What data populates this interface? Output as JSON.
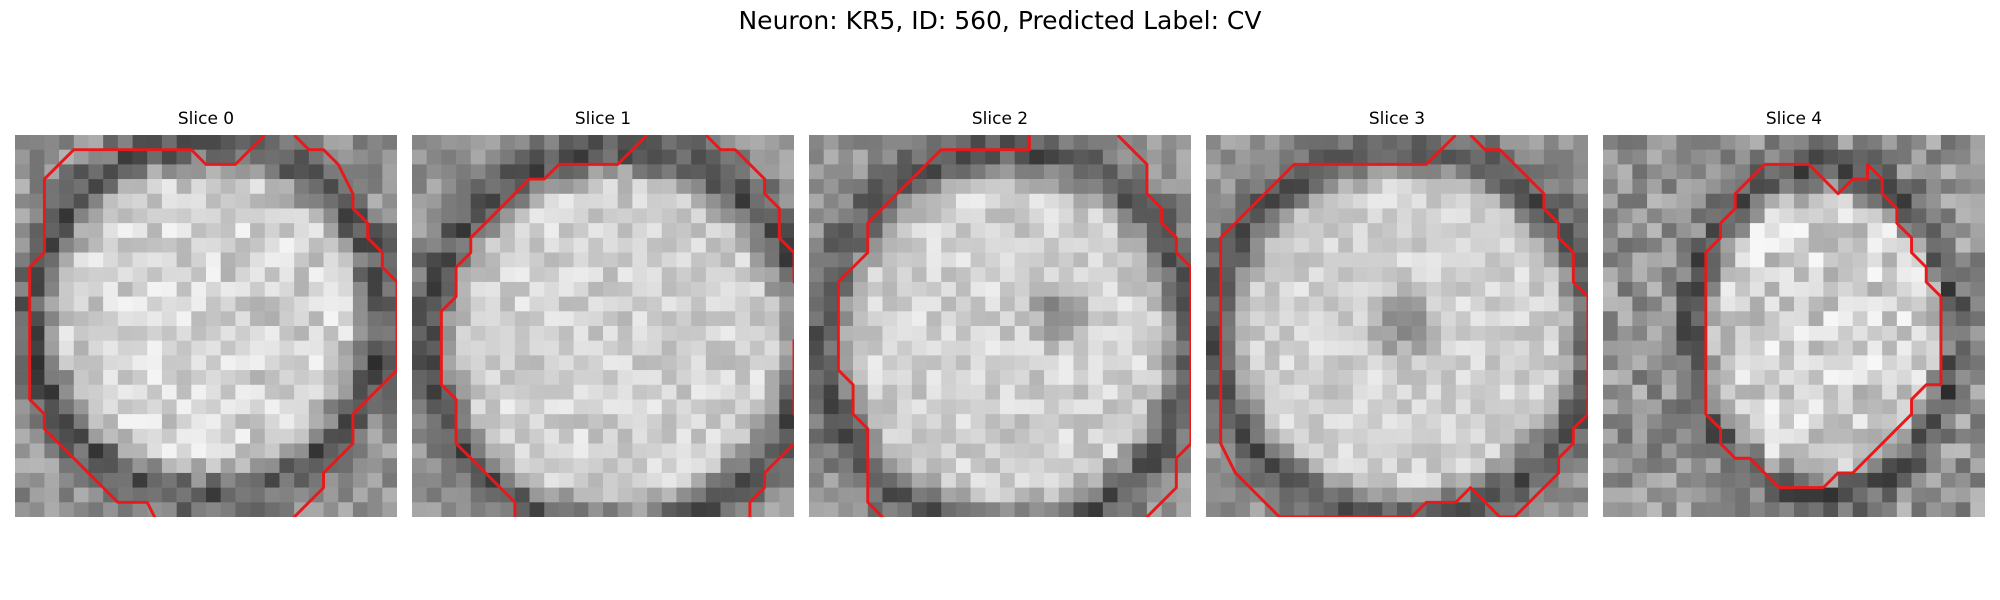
{
  "figure": {
    "title": "Neuron: KR5, ID: 560, Predicted Label: CV",
    "contour_color": "#e8191a",
    "slices": [
      {
        "title": "Slice 0",
        "contour": [
          [
            16.5,
            -0.5
          ],
          [
            15.5,
            0.5
          ],
          [
            14.5,
            1.5
          ],
          [
            12.5,
            1.5
          ],
          [
            11.5,
            0.5
          ],
          [
            3.5,
            0.5
          ],
          [
            1.5,
            2.5
          ],
          [
            1.5,
            7.5
          ],
          [
            0.5,
            8.5
          ],
          [
            0.5,
            17.5
          ],
          [
            1.5,
            18.5
          ],
          [
            1.5,
            19.5
          ],
          [
            3.5,
            21.5
          ],
          [
            4.5,
            22.5
          ],
          [
            5.5,
            23.5
          ],
          [
            6.5,
            24.5
          ],
          [
            8.5,
            24.5
          ],
          [
            9.5,
            26.5
          ]
        ],
        "contour2": [
          [
            18.5,
            -0.5
          ],
          [
            19.5,
            0.5
          ],
          [
            20.5,
            0.5
          ],
          [
            21.5,
            1.5
          ],
          [
            22.5,
            3.5
          ],
          [
            22.5,
            4.5
          ],
          [
            23.5,
            5.5
          ],
          [
            23.5,
            6.5
          ],
          [
            24.5,
            7.5
          ],
          [
            24.5,
            8.5
          ],
          [
            25.5,
            9.5
          ],
          [
            25.5,
            15.5
          ],
          [
            24.5,
            16.5
          ],
          [
            23.5,
            17.5
          ],
          [
            22.5,
            18.5
          ],
          [
            22.5,
            20.5
          ],
          [
            21.5,
            21.5
          ],
          [
            20.5,
            22.5
          ],
          [
            20.5,
            23.5
          ],
          [
            18.5,
            25.5
          ],
          [
            17.5,
            26.5
          ]
        ]
      },
      {
        "title": "Slice 1",
        "contour": [
          [
            15.5,
            -0.5
          ],
          [
            14.5,
            0.5
          ],
          [
            13.5,
            1.5
          ],
          [
            9.5,
            1.5
          ],
          [
            8.5,
            2.5
          ],
          [
            7.5,
            2.5
          ],
          [
            4.5,
            5.5
          ],
          [
            3.5,
            6.5
          ],
          [
            3.5,
            7.5
          ],
          [
            2.5,
            8.5
          ],
          [
            2.5,
            10.5
          ],
          [
            1.5,
            11.5
          ],
          [
            1.5,
            16.5
          ],
          [
            2.5,
            17.5
          ],
          [
            2.5,
            20.5
          ],
          [
            4.5,
            22.5
          ],
          [
            5.5,
            23.5
          ],
          [
            6.5,
            24.5
          ],
          [
            6.5,
            25.5
          ],
          [
            7.5,
            26.5
          ]
        ],
        "contour2": [
          [
            19.5,
            -0.5
          ],
          [
            20.5,
            0.5
          ],
          [
            21.5,
            0.5
          ],
          [
            23.5,
            2.5
          ],
          [
            23.5,
            3.5
          ],
          [
            24.5,
            4.5
          ],
          [
            24.5,
            6.5
          ],
          [
            25.5,
            7.5
          ],
          [
            25.5,
            9.5
          ],
          [
            26.5,
            10.5
          ],
          [
            26.5,
            12.5
          ],
          [
            25.5,
            13.5
          ],
          [
            25.5,
            18.5
          ],
          [
            26.5,
            19.5
          ],
          [
            25.5,
            20.5
          ],
          [
            24.5,
            21.5
          ],
          [
            23.5,
            22.5
          ],
          [
            23.5,
            23.5
          ],
          [
            22.5,
            24.5
          ],
          [
            22.5,
            25.5
          ],
          [
            21.5,
            26.5
          ]
        ]
      },
      {
        "title": "Slice 2",
        "contour": [
          [
            14.5,
            -0.5
          ],
          [
            14.5,
            0.5
          ],
          [
            8.5,
            0.5
          ],
          [
            7.5,
            1.5
          ],
          [
            6.5,
            2.5
          ],
          [
            5.5,
            3.5
          ],
          [
            4.5,
            4.5
          ],
          [
            3.5,
            5.5
          ],
          [
            3.5,
            7.5
          ],
          [
            2.5,
            8.5
          ],
          [
            1.5,
            9.5
          ],
          [
            1.5,
            15.5
          ],
          [
            2.5,
            16.5
          ],
          [
            2.5,
            18.5
          ],
          [
            3.5,
            19.5
          ],
          [
            3.5,
            21.5
          ],
          [
            3.5,
            24.5
          ],
          [
            4.5,
            25.5
          ],
          [
            5.5,
            26.5
          ]
        ],
        "contour2": [
          [
            20.5,
            -0.5
          ],
          [
            21.5,
            0.5
          ],
          [
            22.5,
            1.5
          ],
          [
            22.5,
            3.5
          ],
          [
            23.5,
            4.5
          ],
          [
            23.5,
            5.5
          ],
          [
            24.5,
            6.5
          ],
          [
            24.5,
            7.5
          ],
          [
            25.5,
            8.5
          ],
          [
            25.5,
            20.5
          ],
          [
            24.5,
            21.5
          ],
          [
            24.5,
            23.5
          ],
          [
            23.5,
            24.5
          ],
          [
            22.5,
            25.5
          ],
          [
            21.5,
            26.5
          ],
          [
            20.5,
            26.5
          ]
        ]
      },
      {
        "title": "Slice 3",
        "contour": [
          [
            16.5,
            -0.5
          ],
          [
            15.5,
            0.5
          ],
          [
            14.5,
            1.5
          ],
          [
            5.5,
            1.5
          ],
          [
            1.5,
            5.5
          ],
          [
            0.5,
            6.5
          ],
          [
            0.5,
            20.5
          ],
          [
            1.5,
            22.5
          ],
          [
            2.5,
            23.5
          ],
          [
            4.5,
            25.5
          ],
          [
            13.5,
            25.5
          ],
          [
            14.5,
            24.5
          ],
          [
            16.5,
            24.5
          ],
          [
            17.5,
            23.5
          ],
          [
            18.5,
            24.5
          ],
          [
            19.5,
            25.5
          ],
          [
            20.5,
            25.5
          ],
          [
            21.5,
            24.5
          ],
          [
            22.5,
            23.5
          ],
          [
            23.5,
            22.5
          ],
          [
            23.5,
            21.5
          ],
          [
            24.5,
            20.5
          ],
          [
            24.5,
            19.5
          ],
          [
            25.5,
            18.5
          ],
          [
            25.5,
            15.5
          ],
          [
            25.5,
            10.5
          ],
          [
            24.5,
            9.5
          ],
          [
            24.5,
            7.5
          ],
          [
            23.5,
            6.5
          ],
          [
            23.5,
            5.5
          ],
          [
            22.5,
            4.5
          ],
          [
            22.5,
            3.5
          ],
          [
            21.5,
            2.5
          ],
          [
            20.5,
            1.5
          ],
          [
            19.5,
            0.5
          ],
          [
            18.5,
            0.5
          ],
          [
            17.5,
            -0.5
          ]
        ]
      },
      {
        "title": "Slice 4",
        "contour": [
          [
            10.5,
            1.5
          ],
          [
            9.5,
            2.5
          ],
          [
            8.5,
            3.5
          ],
          [
            8.5,
            4.5
          ],
          [
            7.5,
            5.5
          ],
          [
            7.5,
            6.5
          ],
          [
            6.5,
            7.5
          ],
          [
            6.5,
            18.5
          ],
          [
            7.5,
            19.5
          ],
          [
            7.5,
            20.5
          ],
          [
            8.5,
            21.5
          ],
          [
            9.5,
            21.5
          ],
          [
            10.5,
            22.5
          ],
          [
            11.5,
            23.5
          ],
          [
            14.5,
            23.5
          ],
          [
            15.5,
            22.5
          ],
          [
            16.5,
            22.5
          ],
          [
            17.5,
            21.5
          ],
          [
            18.5,
            20.5
          ],
          [
            19.5,
            19.5
          ],
          [
            20.5,
            18.5
          ],
          [
            20.5,
            17.5
          ],
          [
            21.5,
            16.5
          ],
          [
            22.5,
            16.5
          ],
          [
            22.5,
            10.5
          ],
          [
            21.5,
            9.5
          ],
          [
            21.5,
            8.5
          ],
          [
            20.5,
            7.5
          ],
          [
            20.5,
            6.5
          ],
          [
            19.5,
            5.5
          ],
          [
            19.5,
            4.5
          ],
          [
            18.5,
            3.5
          ],
          [
            18.5,
            2.5
          ],
          [
            17.5,
            1.5
          ],
          [
            17.5,
            2.5
          ],
          [
            16.5,
            2.5
          ],
          [
            15.5,
            3.5
          ],
          [
            14.5,
            2.5
          ],
          [
            13.5,
            1.5
          ],
          [
            10.5,
            1.5
          ]
        ]
      }
    ]
  }
}
